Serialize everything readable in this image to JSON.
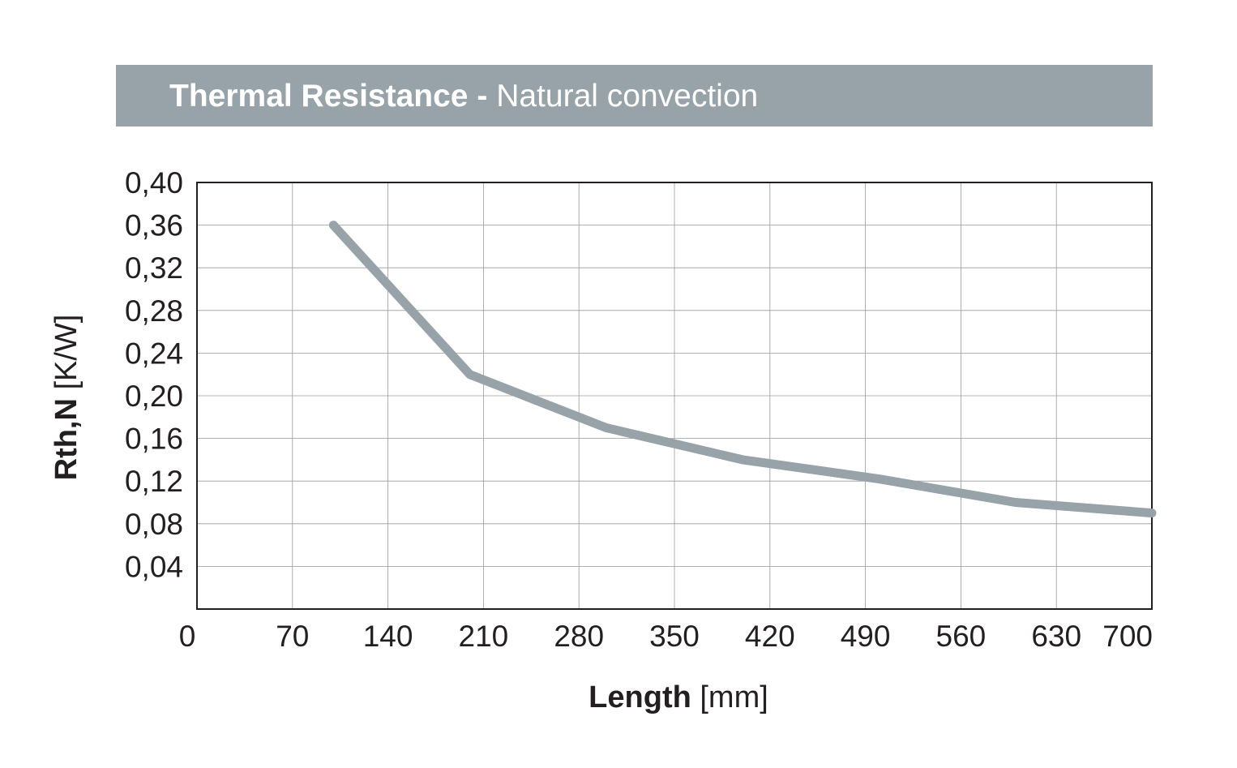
{
  "header": {
    "title_bold": "Thermal Resistance",
    "title_separator": "-",
    "title_normal": "Natural convection",
    "background_color": "#97a3a9",
    "text_color": "#ffffff"
  },
  "chart_data": {
    "type": "line",
    "title": "Thermal Resistance - Natural convection",
    "xlabel_bold": "Length",
    "xlabel_unit": "[mm]",
    "ylabel_bold": "Rth,N",
    "ylabel_unit": "[K/W]",
    "xlim": [
      0,
      700
    ],
    "ylim": [
      0,
      0.4
    ],
    "x_ticks": [
      0,
      70,
      140,
      210,
      280,
      350,
      420,
      490,
      560,
      630,
      700
    ],
    "x_tick_labels": [
      "0",
      "70",
      "140",
      "210",
      "280",
      "350",
      "420",
      "490",
      "560",
      "630",
      "700"
    ],
    "y_ticks": [
      0.04,
      0.08,
      0.12,
      0.16,
      0.2,
      0.24,
      0.28,
      0.32,
      0.36,
      0.4
    ],
    "y_tick_labels": [
      "0,04",
      "0,08",
      "0,12",
      "0,16",
      "0,20",
      "0,24",
      "0,28",
      "0,32",
      "0,36",
      "0,40"
    ],
    "grid": true,
    "series": [
      {
        "color": "#97a3a9",
        "x": [
          100,
          200,
          300,
          400,
          500,
          600,
          700
        ],
        "y": [
          0.36,
          0.22,
          0.17,
          0.14,
          0.122,
          0.1,
          0.09
        ]
      }
    ]
  }
}
